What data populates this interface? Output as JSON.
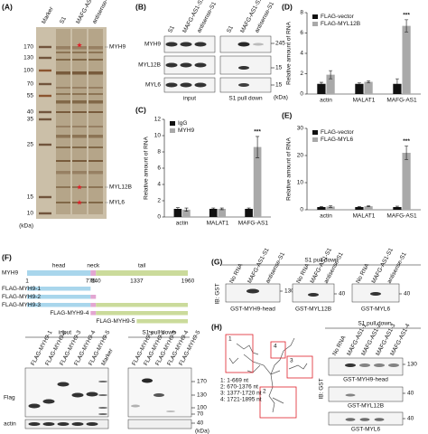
{
  "A": {
    "label": "(A)",
    "lanes": [
      "Marker",
      "S1",
      "MAFG-AS1-S1",
      "antisense-S1"
    ],
    "markers": [
      170,
      130,
      100,
      70,
      55,
      40,
      35,
      25,
      15,
      10
    ],
    "unit": "(kDa)",
    "bands": [
      "MYH9",
      "MYL12B",
      "MYL6"
    ]
  },
  "B": {
    "label": "(B)",
    "rows": [
      "MYH9",
      "MYL12B",
      "MYL6"
    ],
    "lanes": [
      "S1",
      "MAFG-AS1-S1",
      "antisense-S1"
    ],
    "groups": [
      "input",
      "S1 pull down"
    ],
    "markers": [
      245,
      15,
      15
    ],
    "unit": "(kDa)"
  },
  "chart_data": [
    {
      "type": "bar",
      "label": "(C)",
      "y_label": "Relative amount of RNA",
      "categories": [
        "actin",
        "MALAT1",
        "MAFG-AS1"
      ],
      "series": [
        {
          "name": "IgG",
          "color": "#111111",
          "values": [
            1,
            1,
            1
          ],
          "errors": [
            0.15,
            0.1,
            0.1
          ]
        },
        {
          "name": "MYH9",
          "color": "#a9a9a9",
          "values": [
            0.9,
            1,
            8.6
          ],
          "errors": [
            0.2,
            0.1,
            1.3
          ]
        }
      ],
      "ylim": [
        0,
        12
      ],
      "yticks": [
        0,
        2,
        4,
        6,
        8,
        10,
        12
      ],
      "annotation": "***"
    },
    {
      "type": "bar",
      "label": "(D)",
      "y_label": "Relative amount of RNA",
      "categories": [
        "actin",
        "MALAT1",
        "MAFG-AS1"
      ],
      "series": [
        {
          "name": "FLAG-vector",
          "color": "#111111",
          "values": [
            1,
            1,
            1
          ],
          "errors": [
            0.15,
            0.1,
            0.5
          ]
        },
        {
          "name": "FLAG-MYL12B",
          "color": "#a9a9a9",
          "values": [
            1.9,
            1.2,
            6.7
          ],
          "errors": [
            0.4,
            0.1,
            0.6
          ]
        }
      ],
      "ylim": [
        0,
        8
      ],
      "yticks": [
        0,
        2,
        4,
        6,
        8
      ],
      "annotation": "***"
    },
    {
      "type": "bar",
      "label": "(E)",
      "y_label": "Relative amount of RNA",
      "categories": [
        "actin",
        "MALAT1",
        "MAFG-AS1"
      ],
      "series": [
        {
          "name": "FLAG-vector",
          "color": "#111111",
          "values": [
            1,
            1,
            1
          ],
          "errors": [
            0.2,
            0.2,
            0.3
          ]
        },
        {
          "name": "FLAG-MYL6",
          "color": "#a9a9a9",
          "values": [
            1.2,
            1.3,
            21
          ],
          "errors": [
            0.3,
            0.2,
            2.5
          ]
        }
      ],
      "ylim": [
        0,
        30
      ],
      "yticks": [
        0,
        10,
        20,
        30
      ],
      "annotation": "***"
    }
  ],
  "F": {
    "label": "(F)",
    "protein": "MYH9",
    "domains": [
      "head",
      "neck",
      "tail"
    ],
    "positions": [
      1,
      775,
      840,
      1337,
      1960
    ],
    "constructs": [
      "FLAG-MYH9-1",
      "FLAG-MYH9-2",
      "FLAG-MYH9-3",
      "FLAG-MYH9-4",
      "FLAG-MYH9-5"
    ],
    "groups": [
      "input",
      "S1 pull down"
    ],
    "marker_lane": "Marker",
    "rows": [
      "Flag",
      "actin"
    ],
    "markers": [
      170,
      130,
      100,
      70,
      40
    ],
    "unit": "(kDa)"
  },
  "G": {
    "label": "(G)",
    "title": "S1 pull down",
    "ib": "IB: GST",
    "lanes": [
      "No RNA",
      "MAFG-AS1-S1",
      "antisense-S1"
    ],
    "blots": [
      {
        "name": "GST-MYH9-head",
        "marker": 130
      },
      {
        "name": "GST-MYL12B",
        "marker": 40
      },
      {
        "name": "GST-MYL6",
        "marker": 40
      }
    ]
  },
  "H": {
    "label": "(H)",
    "regions": [
      "1",
      "2",
      "3",
      "4"
    ],
    "legend": [
      "1: 1-669 nt",
      "2: 670-1376 nt",
      "3: 1377-1720 nt",
      "4: 1721-1895 nt"
    ],
    "title": "S1 pull down",
    "ib": "IB: GST",
    "lanes": [
      "No RNA",
      "MAFG-AS1-1",
      "MAFG-AS1-2",
      "MAFG-AS1-3",
      "MAFG-AS1-4"
    ],
    "blots": [
      {
        "name": "GST-MYH9-head",
        "marker": 130
      },
      {
        "name": "GST-MYL12B",
        "marker": 40
      },
      {
        "name": "GST-MYL6",
        "marker": 40
      }
    ]
  }
}
